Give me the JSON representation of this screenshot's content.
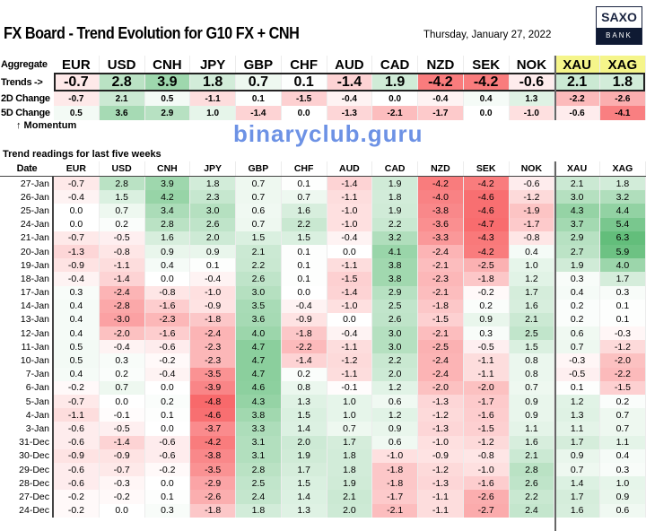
{
  "header": {
    "title": "FX Board - Trend Evolution for G10 FX + CNH",
    "date": "Thursday, January 27, 2022",
    "logo_top": "SAXO",
    "logo_bottom": "BANK"
  },
  "colors": {
    "negative": "#f8696b",
    "neutral": "#ffffff",
    "positive": "#63be7b",
    "metal_header": "#f5f58a"
  },
  "currencies": [
    "EUR",
    "USD",
    "CNH",
    "JPY",
    "GBP",
    "CHF",
    "AUD",
    "CAD",
    "NZD",
    "SEK",
    "NOK",
    "XAU",
    "XAG"
  ],
  "aggregate": {
    "label": "Aggregate",
    "trends_label": "Trends ->",
    "trends": [
      "-0.7",
      "2.8",
      "3.9",
      "1.8",
      "0.7",
      "0.1",
      "-1.4",
      "1.9",
      "-4.2",
      "-4.2",
      "-0.6",
      "2.1",
      "1.8"
    ],
    "change_2d_label": "2D Change",
    "change_2d": [
      "-0.7",
      "2.1",
      "0.5",
      "-1.1",
      "0.1",
      "-1.5",
      "-0.4",
      "0.0",
      "-0.4",
      "0.4",
      "1.3",
      "-2.2",
      "-2.6"
    ],
    "change_5d_label": "5D Change",
    "change_5d": [
      "0.5",
      "3.6",
      "2.9",
      "1.0",
      "-1.4",
      "0.0",
      "-1.3",
      "-2.1",
      "-1.7",
      "0.0",
      "-1.0",
      "-0.6",
      "-4.1"
    ],
    "momentum_label": "↑ Momentum"
  },
  "history": {
    "section_title": "Trend readings for last five weeks",
    "date_header": "Date",
    "rows": [
      {
        "date": "27-Jan",
        "values": [
          "-0.7",
          "2.8",
          "3.9",
          "1.8",
          "0.7",
          "0.1",
          "-1.4",
          "1.9",
          "-4.2",
          "-4.2",
          "-0.6",
          "2.1",
          "1.8"
        ]
      },
      {
        "date": "26-Jan",
        "values": [
          "-0.4",
          "1.5",
          "4.2",
          "2.3",
          "0.7",
          "0.7",
          "-1.1",
          "1.8",
          "-4.0",
          "-4.6",
          "-1.2",
          "3.0",
          "3.2"
        ]
      },
      {
        "date": "25-Jan",
        "values": [
          "0.0",
          "0.7",
          "3.4",
          "3.0",
          "0.6",
          "1.6",
          "-1.0",
          "1.9",
          "-3.8",
          "-4.6",
          "-1.9",
          "4.3",
          "4.4"
        ]
      },
      {
        "date": "24-Jan",
        "values": [
          "0.0",
          "0.2",
          "2.8",
          "2.6",
          "0.7",
          "2.2",
          "-1.0",
          "2.2",
          "-3.6",
          "-4.7",
          "-1.7",
          "3.7",
          "5.4"
        ]
      },
      {
        "date": "21-Jan",
        "values": [
          "-0.7",
          "-0.5",
          "1.6",
          "2.0",
          "1.5",
          "1.5",
          "-0.4",
          "3.2",
          "-3.3",
          "-4.3",
          "-0.8",
          "2.9",
          "6.3"
        ]
      },
      {
        "date": "20-Jan",
        "values": [
          "-1.3",
          "-0.8",
          "0.9",
          "0.9",
          "2.1",
          "0.1",
          "0.0",
          "4.1",
          "-2.4",
          "-4.2",
          "0.4",
          "2.7",
          "5.9"
        ]
      },
      {
        "date": "19-Jan",
        "values": [
          "-0.9",
          "-1.1",
          "0.4",
          "0.1",
          "2.2",
          "0.1",
          "-1.1",
          "3.8",
          "-2.1",
          "-2.5",
          "1.0",
          "1.9",
          "4.0"
        ]
      },
      {
        "date": "18-Jan",
        "values": [
          "-0.4",
          "-1.4",
          "0.0",
          "-0.4",
          "2.6",
          "0.1",
          "-1.5",
          "3.8",
          "-2.3",
          "-1.8",
          "1.2",
          "0.3",
          "1.7"
        ]
      },
      {
        "date": "17-Jan",
        "values": [
          "0.3",
          "-2.4",
          "-0.8",
          "-1.0",
          "3.0",
          "0.0",
          "-1.4",
          "2.9",
          "-2.1",
          "-0.2",
          "1.7",
          "0.4",
          "0.3"
        ]
      },
      {
        "date": "14-Jan",
        "values": [
          "0.4",
          "-2.8",
          "-1.6",
          "-0.9",
          "3.5",
          "-0.4",
          "-1.0",
          "2.5",
          "-1.8",
          "0.2",
          "1.6",
          "0.2",
          "0.1"
        ]
      },
      {
        "date": "13-Jan",
        "values": [
          "0.4",
          "-3.0",
          "-2.3",
          "-1.8",
          "3.6",
          "-0.9",
          "0.0",
          "2.6",
          "-1.5",
          "0.9",
          "2.1",
          "0.2",
          "0.1"
        ]
      },
      {
        "date": "12-Jan",
        "values": [
          "0.4",
          "-2.0",
          "-1.6",
          "-2.4",
          "4.0",
          "-1.8",
          "-0.4",
          "3.0",
          "-2.1",
          "0.3",
          "2.5",
          "0.6",
          "-0.3"
        ]
      },
      {
        "date": "11-Jan",
        "values": [
          "0.5",
          "-0.4",
          "-0.6",
          "-2.3",
          "4.7",
          "-2.2",
          "-1.1",
          "3.0",
          "-2.5",
          "-0.5",
          "1.5",
          "0.7",
          "-1.2"
        ]
      },
      {
        "date": "10-Jan",
        "values": [
          "0.5",
          "0.3",
          "-0.2",
          "-2.3",
          "4.7",
          "-1.4",
          "-1.2",
          "2.2",
          "-2.4",
          "-1.1",
          "0.8",
          "-0.3",
          "-2.0"
        ]
      },
      {
        "date": "7-Jan",
        "values": [
          "0.4",
          "0.2",
          "-0.4",
          "-3.5",
          "4.7",
          "0.2",
          "-1.1",
          "2.0",
          "-2.4",
          "-1.1",
          "0.8",
          "-0.5",
          "-2.2"
        ]
      },
      {
        "date": "6-Jan",
        "values": [
          "-0.2",
          "0.7",
          "0.0",
          "-3.9",
          "4.6",
          "0.8",
          "-0.1",
          "1.2",
          "-2.0",
          "-2.0",
          "0.7",
          "0.1",
          "-1.5"
        ]
      },
      {
        "date": "5-Jan",
        "values": [
          "-0.7",
          "0.0",
          "0.2",
          "-4.8",
          "4.3",
          "1.3",
          "1.0",
          "0.6",
          "-1.3",
          "-1.7",
          "0.9",
          "1.2",
          "0.2"
        ]
      },
      {
        "date": "4-Jan",
        "values": [
          "-1.1",
          "-0.1",
          "0.1",
          "-4.6",
          "3.8",
          "1.5",
          "1.0",
          "1.2",
          "-1.2",
          "-1.6",
          "0.9",
          "1.3",
          "0.7"
        ]
      },
      {
        "date": "3-Jan",
        "values": [
          "-0.6",
          "-0.5",
          "0.0",
          "-3.7",
          "3.3",
          "1.4",
          "0.7",
          "0.9",
          "-1.3",
          "-1.5",
          "1.1",
          "1.1",
          "0.7"
        ]
      },
      {
        "date": "31-Dec",
        "values": [
          "-0.6",
          "-1.4",
          "-0.6",
          "-4.2",
          "3.1",
          "2.0",
          "1.7",
          "0.6",
          "-1.0",
          "-1.2",
          "1.6",
          "1.7",
          "1.1"
        ]
      },
      {
        "date": "30-Dec",
        "values": [
          "-0.9",
          "-0.9",
          "-0.6",
          "-3.8",
          "3.1",
          "1.9",
          "1.8",
          "-1.0",
          "-0.9",
          "-0.8",
          "2.1",
          "0.9",
          "0.4"
        ]
      },
      {
        "date": "29-Dec",
        "values": [
          "-0.6",
          "-0.7",
          "-0.2",
          "-3.5",
          "2.8",
          "1.7",
          "1.8",
          "-1.8",
          "-1.2",
          "-1.0",
          "2.8",
          "0.7",
          "0.3"
        ]
      },
      {
        "date": "28-Dec",
        "values": [
          "-0.6",
          "-0.3",
          "0.0",
          "-2.9",
          "2.5",
          "1.5",
          "1.9",
          "-1.8",
          "-1.3",
          "-1.6",
          "2.6",
          "1.4",
          "1.0"
        ]
      },
      {
        "date": "27-Dec",
        "values": [
          "-0.2",
          "-0.2",
          "0.1",
          "-2.6",
          "2.4",
          "1.4",
          "2.1",
          "-1.7",
          "-1.1",
          "-2.6",
          "2.2",
          "1.7",
          "0.9"
        ]
      },
      {
        "date": "24-Dec",
        "values": [
          "-0.2",
          "0.0",
          "0.3",
          "-1.8",
          "1.8",
          "1.3",
          "2.0",
          "-2.1",
          "-1.1",
          "-2.7",
          "2.4",
          "1.6",
          "0.6"
        ]
      }
    ]
  },
  "watermark": "binaryclub.guru"
}
